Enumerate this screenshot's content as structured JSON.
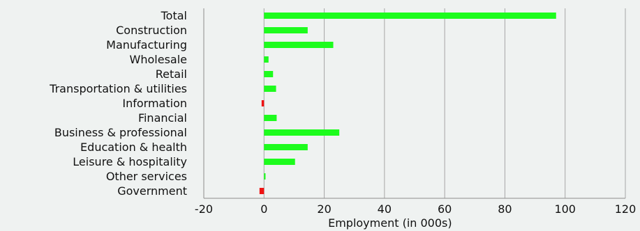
{
  "chart_data": {
    "type": "bar",
    "orientation": "horizontal",
    "title": "",
    "xlabel": "Employment (in 000s)",
    "ylabel": "",
    "xlim": [
      -20,
      120
    ],
    "xticks": [
      -20,
      0,
      20,
      40,
      60,
      80,
      100,
      120
    ],
    "grid": "vertical",
    "legend": "none",
    "categories": [
      "Total",
      "Construction",
      "Manufacturing",
      "Wholesale",
      "Retail",
      "Transportation & utilities",
      "Information",
      "Financial",
      "Business & professional",
      "Education & health",
      "Leisure & hospitality",
      "Other services",
      "Government"
    ],
    "values": [
      97,
      14.5,
      23,
      1.5,
      3,
      4,
      -0.8,
      4.2,
      25,
      14.5,
      10.3,
      0.5,
      -1.5
    ],
    "colors": {
      "positive": "#1dfc1d",
      "negative": "#ef1313",
      "grid": "#a6a6a6",
      "axis": "#8c8c8c"
    }
  }
}
